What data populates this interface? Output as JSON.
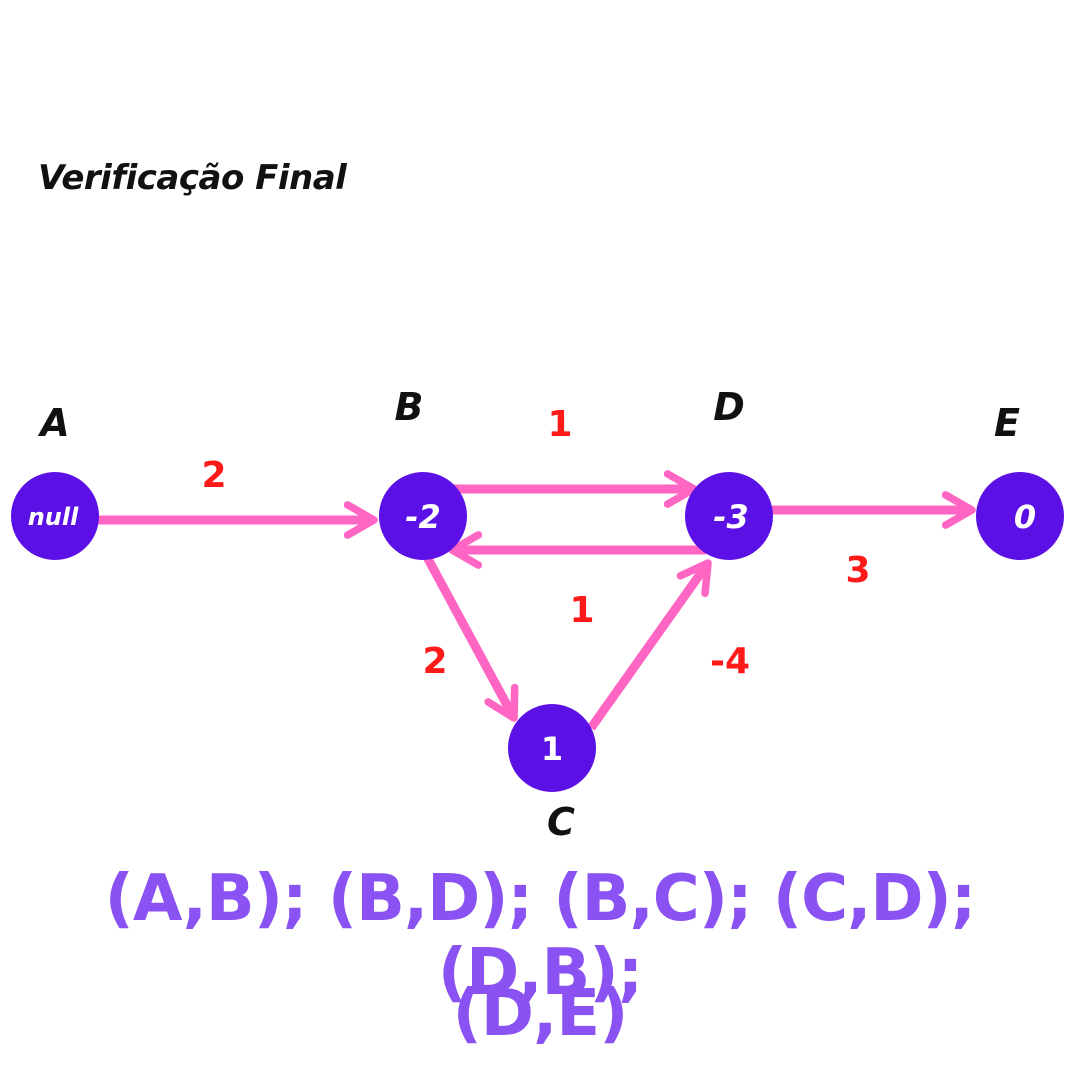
{
  "title": "Verificação Final",
  "colors": {
    "node": "#5b10e6",
    "edge": "#ff66c4",
    "weight": "#ff1a1a",
    "edgeList": "#8a52f2"
  },
  "nodes": [
    {
      "id": "A",
      "value": "null"
    },
    {
      "id": "B",
      "value": "-2"
    },
    {
      "id": "D",
      "value": "-3"
    },
    {
      "id": "E",
      "value": "0"
    },
    {
      "id": "C",
      "value": "1"
    }
  ],
  "edges": [
    {
      "from": "A",
      "to": "B",
      "weight": "2"
    },
    {
      "from": "B",
      "to": "D",
      "weight": "1"
    },
    {
      "from": "D",
      "to": "B",
      "weight": "1"
    },
    {
      "from": "B",
      "to": "C",
      "weight": "2"
    },
    {
      "from": "C",
      "to": "D",
      "weight": "-4"
    },
    {
      "from": "D",
      "to": "E",
      "weight": "3"
    }
  ],
  "edge_list": {
    "line1": "(A,B); (B,D); (B,C); (C,D); (D,B);",
    "line2": "(D,E)"
  }
}
